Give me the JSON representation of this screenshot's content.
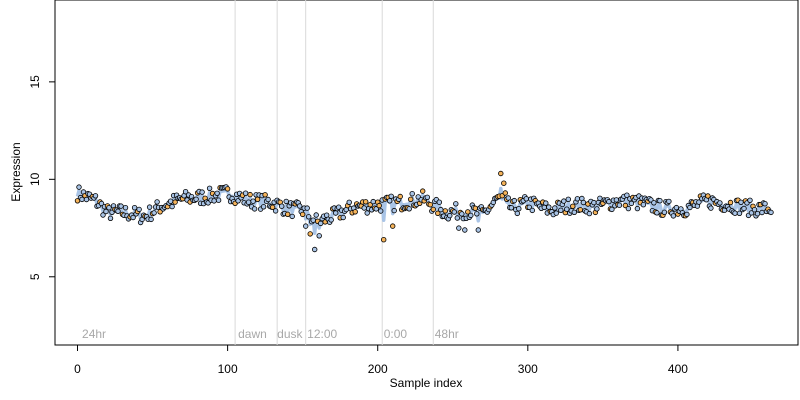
{
  "chart_data": {
    "type": "scatter",
    "title": "",
    "xlabel": "Sample index",
    "ylabel": "Expression",
    "xlim": [
      -15,
      480
    ],
    "ylim": [
      1.5,
      19.2
    ],
    "x_ticks": [
      0,
      100,
      200,
      300,
      400
    ],
    "y_ticks": [
      5,
      10,
      15
    ],
    "grid": false,
    "legend": "none",
    "colors": {
      "point_fill_blue": "#a9c4e6",
      "point_fill_orange": "#f5b35a",
      "point_stroke": "#000000",
      "series_line": "#a9c4e6",
      "vline": "#d9d9d9",
      "phase_text": "#a8a8a8"
    },
    "phase_lines": [
      105,
      133,
      152,
      203,
      237
    ],
    "phase_labels": [
      {
        "x": 3,
        "text": "24hr"
      },
      {
        "x": 107,
        "text": "dawn"
      },
      {
        "x": 133,
        "text": "dusk"
      },
      {
        "x": 153,
        "text": "12:00"
      },
      {
        "x": 204,
        "text": "0:00"
      },
      {
        "x": 238,
        "text": "48hr"
      }
    ],
    "series": [
      {
        "color": "#a9c4e6",
        "x_start": 0,
        "x_end": 462,
        "role": "line"
      }
    ],
    "anchors": [
      [
        0,
        9.3
      ],
      [
        12,
        8.9
      ],
      [
        20,
        8.3
      ],
      [
        30,
        8.3
      ],
      [
        45,
        8.1
      ],
      [
        55,
        8.6
      ],
      [
        70,
        9.0
      ],
      [
        85,
        9.1
      ],
      [
        100,
        9.3
      ],
      [
        115,
        8.9
      ],
      [
        130,
        8.8
      ],
      [
        140,
        8.5
      ],
      [
        150,
        8.4
      ],
      [
        160,
        7.8
      ],
      [
        170,
        8.1
      ],
      [
        185,
        8.6
      ],
      [
        200,
        8.7
      ],
      [
        215,
        8.8
      ],
      [
        230,
        9.0
      ],
      [
        245,
        8.3
      ],
      [
        260,
        8.4
      ],
      [
        270,
        8.2
      ],
      [
        280,
        9.0
      ],
      [
        290,
        8.5
      ],
      [
        300,
        8.8
      ],
      [
        315,
        8.4
      ],
      [
        330,
        8.7
      ],
      [
        345,
        8.6
      ],
      [
        360,
        8.9
      ],
      [
        375,
        8.8
      ],
      [
        390,
        8.5
      ],
      [
        405,
        8.5
      ],
      [
        420,
        8.9
      ],
      [
        435,
        8.7
      ],
      [
        450,
        8.5
      ],
      [
        462,
        8.5
      ]
    ],
    "spikes": [
      [
        152,
        7.6
      ],
      [
        155,
        7.2
      ],
      [
        158,
        6.4
      ],
      [
        161,
        7.1
      ],
      [
        204,
        6.9
      ],
      [
        210,
        7.6
      ],
      [
        254,
        7.5
      ],
      [
        258,
        7.4
      ],
      [
        267,
        7.4
      ],
      [
        282,
        10.3
      ],
      [
        284,
        9.8
      ],
      [
        285,
        9.3
      ]
    ]
  }
}
